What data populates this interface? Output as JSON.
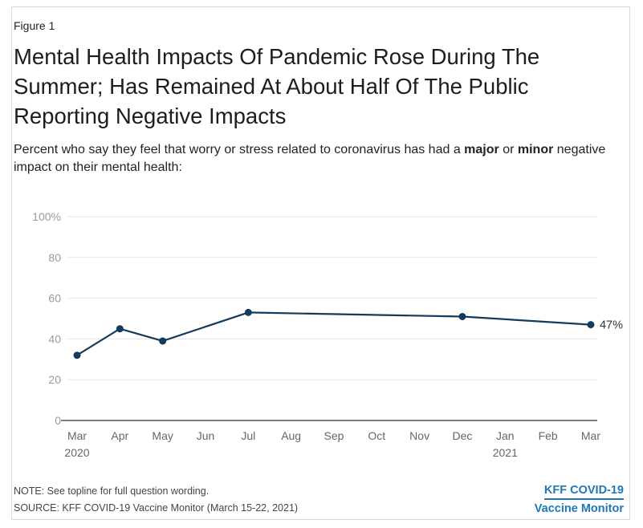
{
  "figure_label": "Figure 1",
  "title": "Mental Health Impacts Of Pandemic Rose During The Summer; Has Remained At About Half Of The Public Reporting Negative Impacts",
  "subtitle": {
    "pre": "Percent who say they feel that worry or stress related to coronavirus has had a ",
    "bold1": "major",
    "mid": " or ",
    "bold2": "minor",
    "post": " negative impact on their mental health:"
  },
  "chart_data": {
    "type": "line",
    "categories": [
      "Mar",
      "Apr",
      "May",
      "Jun",
      "Jul",
      "Aug",
      "Sep",
      "Oct",
      "Nov",
      "Dec",
      "Jan",
      "Feb",
      "Mar"
    ],
    "year_labels": [
      {
        "index": 0,
        "text": "2020"
      },
      {
        "index": 10,
        "text": "2021"
      }
    ],
    "yticks": [
      "0",
      "20",
      "40",
      "60",
      "80",
      "100%"
    ],
    "ylim": [
      0,
      100
    ],
    "grid": true,
    "series": [
      {
        "points": [
          {
            "x_index": 0,
            "y": 32
          },
          {
            "x_index": 1,
            "y": 45
          },
          {
            "x_index": 2,
            "y": 39
          },
          {
            "x_index": 4,
            "y": 53
          },
          {
            "x_index": 9,
            "y": 51
          },
          {
            "x_index": 12,
            "y": 47
          }
        ],
        "end_label": "47%",
        "color": "#123b5e"
      }
    ]
  },
  "footer": {
    "note": "NOTE: See topline for full question wording.",
    "source": "SOURCE: KFF COVID-19 Vaccine Monitor (March 15-22, 2021)"
  },
  "brand": {
    "line1": "KFF COVID-19",
    "line2": "Vaccine Monitor",
    "color": "#1f78b4"
  }
}
